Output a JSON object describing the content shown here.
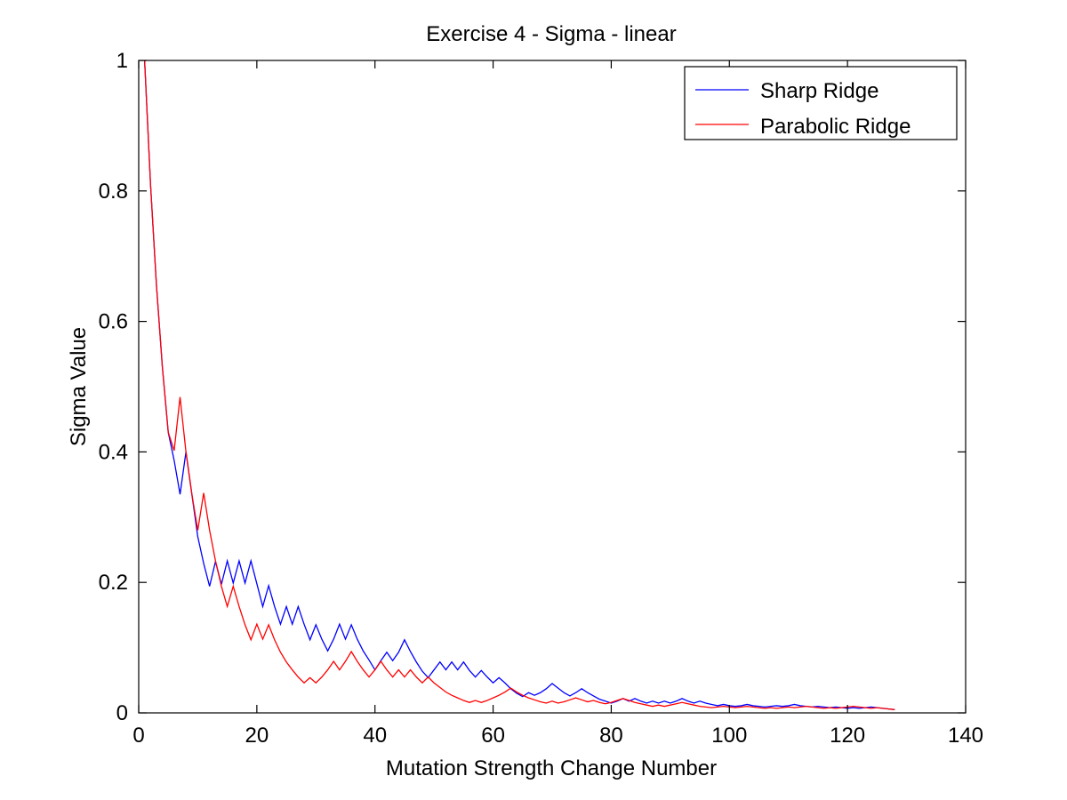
{
  "chart_data": {
    "type": "line",
    "title": "Exercise 4 - Sigma - linear",
    "xlabel": "Mutation Strength Change Number",
    "ylabel": "Sigma Value",
    "xlim": [
      0,
      140
    ],
    "ylim": [
      0,
      1
    ],
    "xticks": [
      0,
      20,
      40,
      60,
      80,
      100,
      120,
      140
    ],
    "yticks": [
      0,
      0.2,
      0.4,
      0.6,
      0.8,
      1
    ],
    "xtick_labels": [
      "0",
      "20",
      "40",
      "60",
      "80",
      "100",
      "120",
      "140"
    ],
    "ytick_labels": [
      "0",
      "0.2",
      "0.4",
      "0.6",
      "0.8",
      "1"
    ],
    "grid": false,
    "legend_position": "top-right",
    "series": [
      {
        "name": "Sharp Ridge",
        "color": "#0000ff",
        "x": [
          1,
          2,
          3,
          4,
          5,
          6,
          7,
          8,
          9,
          10,
          11,
          12,
          13,
          14,
          15,
          16,
          17,
          18,
          19,
          20,
          21,
          22,
          23,
          24,
          25,
          26,
          27,
          28,
          29,
          30,
          31,
          32,
          33,
          34,
          35,
          36,
          37,
          38,
          39,
          40,
          41,
          42,
          43,
          44,
          45,
          46,
          47,
          48,
          49,
          50,
          51,
          52,
          53,
          54,
          55,
          56,
          57,
          58,
          59,
          60,
          61,
          62,
          63,
          64,
          65,
          66,
          67,
          68,
          69,
          70,
          71,
          72,
          73,
          74,
          75,
          76,
          77,
          78,
          79,
          80,
          81,
          82,
          83,
          84,
          85,
          86,
          87,
          88,
          89,
          90,
          91,
          92,
          93,
          94,
          95,
          96,
          97,
          98,
          99,
          100,
          101,
          102,
          103,
          104,
          105,
          106,
          107,
          108,
          109,
          110,
          111,
          112,
          113,
          114,
          115,
          116,
          117,
          118,
          119,
          120,
          121,
          122,
          123,
          124,
          125,
          126,
          127,
          128
        ],
        "values": [
          1.0,
          0.81,
          0.656,
          0.531,
          0.43,
          0.387,
          0.335,
          0.4,
          0.335,
          0.27,
          0.229,
          0.194,
          0.232,
          0.197,
          0.233,
          0.199,
          0.233,
          0.199,
          0.233,
          0.198,
          0.163,
          0.195,
          0.163,
          0.136,
          0.163,
          0.136,
          0.163,
          0.136,
          0.112,
          0.135,
          0.113,
          0.095,
          0.113,
          0.136,
          0.113,
          0.135,
          0.113,
          0.095,
          0.081,
          0.066,
          0.08,
          0.093,
          0.08,
          0.093,
          0.112,
          0.094,
          0.078,
          0.064,
          0.054,
          0.066,
          0.078,
          0.066,
          0.078,
          0.066,
          0.078,
          0.065,
          0.055,
          0.065,
          0.055,
          0.046,
          0.054,
          0.046,
          0.037,
          0.03,
          0.025,
          0.031,
          0.027,
          0.031,
          0.037,
          0.045,
          0.038,
          0.031,
          0.026,
          0.031,
          0.037,
          0.031,
          0.026,
          0.021,
          0.018,
          0.015,
          0.018,
          0.022,
          0.018,
          0.022,
          0.018,
          0.015,
          0.018,
          0.015,
          0.018,
          0.015,
          0.018,
          0.022,
          0.018,
          0.015,
          0.018,
          0.015,
          0.013,
          0.011,
          0.013,
          0.011,
          0.01,
          0.011,
          0.013,
          0.011,
          0.01,
          0.009,
          0.01,
          0.011,
          0.01,
          0.011,
          0.013,
          0.011,
          0.01,
          0.009,
          0.01,
          0.009,
          0.008,
          0.009,
          0.008,
          0.007,
          0.008,
          0.007,
          0.008,
          0.009,
          0.008,
          0.007,
          0.006,
          0.005
        ]
      },
      {
        "name": "Parabolic Ridge",
        "color": "#ff0000",
        "x": [
          1,
          2,
          3,
          4,
          5,
          6,
          7,
          8,
          9,
          10,
          11,
          12,
          13,
          14,
          15,
          16,
          17,
          18,
          19,
          20,
          21,
          22,
          23,
          24,
          25,
          26,
          27,
          28,
          29,
          30,
          31,
          32,
          33,
          34,
          35,
          36,
          37,
          38,
          39,
          40,
          41,
          42,
          43,
          44,
          45,
          46,
          47,
          48,
          49,
          50,
          51,
          52,
          53,
          54,
          55,
          56,
          57,
          58,
          59,
          60,
          61,
          62,
          63,
          64,
          65,
          66,
          67,
          68,
          69,
          70,
          71,
          72,
          73,
          74,
          75,
          76,
          77,
          78,
          79,
          80,
          81,
          82,
          83,
          84,
          85,
          86,
          87,
          88,
          89,
          90,
          91,
          92,
          93,
          94,
          95,
          96,
          97,
          98,
          99,
          100,
          101,
          102,
          103,
          104,
          105,
          106,
          107,
          108,
          109,
          110,
          111,
          112,
          113,
          114,
          115,
          116,
          117,
          118,
          119,
          120,
          121,
          122,
          123,
          124,
          125,
          126,
          127,
          128
        ],
        "values": [
          1.0,
          0.81,
          0.656,
          0.531,
          0.43,
          0.402,
          0.484,
          0.4,
          0.335,
          0.28,
          0.337,
          0.28,
          0.233,
          0.194,
          0.163,
          0.194,
          0.163,
          0.135,
          0.112,
          0.136,
          0.113,
          0.135,
          0.112,
          0.093,
          0.078,
          0.066,
          0.055,
          0.046,
          0.054,
          0.046,
          0.055,
          0.066,
          0.079,
          0.066,
          0.079,
          0.094,
          0.079,
          0.066,
          0.055,
          0.066,
          0.079,
          0.066,
          0.055,
          0.066,
          0.055,
          0.066,
          0.055,
          0.046,
          0.055,
          0.046,
          0.039,
          0.032,
          0.027,
          0.023,
          0.019,
          0.016,
          0.019,
          0.016,
          0.019,
          0.023,
          0.027,
          0.032,
          0.038,
          0.032,
          0.027,
          0.023,
          0.02,
          0.017,
          0.015,
          0.018,
          0.015,
          0.017,
          0.02,
          0.023,
          0.02,
          0.017,
          0.019,
          0.016,
          0.014,
          0.016,
          0.019,
          0.022,
          0.019,
          0.016,
          0.014,
          0.012,
          0.01,
          0.012,
          0.01,
          0.012,
          0.014,
          0.016,
          0.014,
          0.012,
          0.01,
          0.009,
          0.008,
          0.009,
          0.01,
          0.009,
          0.008,
          0.009,
          0.01,
          0.009,
          0.008,
          0.007,
          0.008,
          0.007,
          0.008,
          0.009,
          0.008,
          0.009,
          0.01,
          0.009,
          0.008,
          0.007,
          0.008,
          0.007,
          0.008,
          0.009,
          0.01,
          0.009,
          0.008,
          0.007,
          0.008,
          0.007,
          0.006,
          0.005
        ]
      }
    ]
  }
}
